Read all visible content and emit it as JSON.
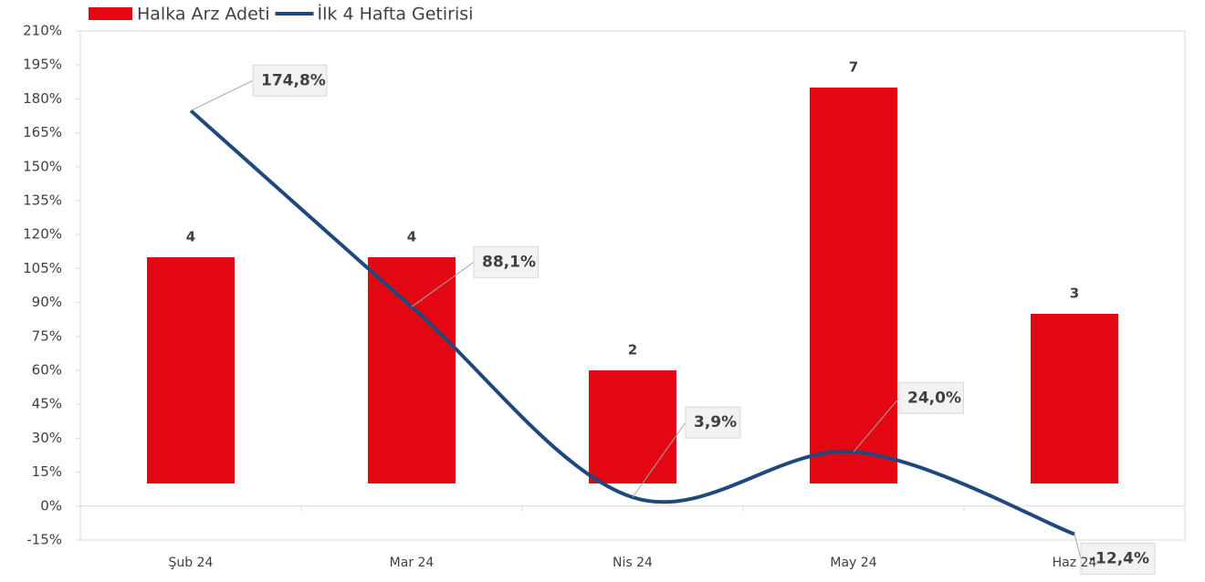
{
  "chart_data": {
    "type": "bar_line",
    "categories": [
      "Şub 24",
      "Mar 24",
      "Nis 24",
      "May 24",
      "Haz 24"
    ],
    "series": [
      {
        "name": "Halka Arz Adeti",
        "type": "bar",
        "axis": "y2",
        "color": "#e30613",
        "values": [
          4,
          4,
          2,
          7,
          3
        ]
      },
      {
        "name": "İlk 4 Hafta Getirisi",
        "type": "line",
        "color": "#1f497d",
        "values": [
          174.8,
          88.1,
          3.9,
          24.0,
          -12.4
        ],
        "value_labels": [
          "174,8%",
          "88,1%",
          "3,9%",
          "24,0%",
          "-12,4%"
        ]
      }
    ],
    "ylim": [
      -15,
      210
    ],
    "yticks": [
      {
        "value": -15,
        "label": "-15%"
      },
      {
        "value": 0,
        "label": "0%"
      },
      {
        "value": 15,
        "label": "15%"
      },
      {
        "value": 30,
        "label": "30%"
      },
      {
        "value": 45,
        "label": "45%"
      },
      {
        "value": 60,
        "label": "60%"
      },
      {
        "value": 75,
        "label": "75%"
      },
      {
        "value": 90,
        "label": "90%"
      },
      {
        "value": 105,
        "label": "105%"
      },
      {
        "value": 120,
        "label": "120%"
      },
      {
        "value": 135,
        "label": "135%"
      },
      {
        "value": 150,
        "label": "150%"
      },
      {
        "value": 165,
        "label": "165%"
      },
      {
        "value": 180,
        "label": "180%"
      },
      {
        "value": 195,
        "label": "195%"
      },
      {
        "value": 210,
        "label": "210%"
      }
    ],
    "y2lim": [
      -1,
      8
    ],
    "legend": "top-left"
  }
}
